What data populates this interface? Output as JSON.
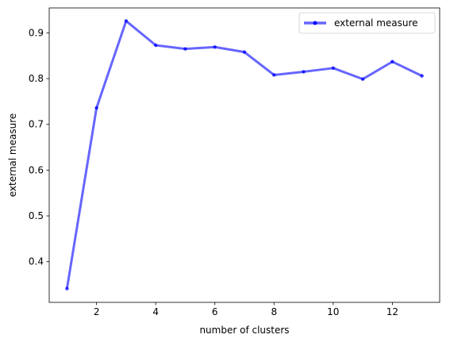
{
  "chart_data": {
    "type": "line",
    "title": "",
    "xlabel": "number of clusters",
    "ylabel": "external measure",
    "x_ticks": [
      "2",
      "4",
      "6",
      "8",
      "10",
      "12"
    ],
    "y_ticks": [
      "0.4",
      "0.5",
      "0.6",
      "0.7",
      "0.8",
      "0.9"
    ],
    "xlim": [
      0.4,
      13.6
    ],
    "ylim": [
      0.311,
      0.9545
    ],
    "grid": false,
    "legend": "top-right",
    "series": [
      {
        "name": "external measure",
        "color": "#0000ff",
        "marker": "circle",
        "x": [
          1,
          2,
          3,
          4,
          5,
          6,
          7,
          8,
          9,
          10,
          11,
          12,
          13
        ],
        "y": [
          0.341,
          0.736,
          0.926,
          0.873,
          0.865,
          0.869,
          0.858,
          0.808,
          0.815,
          0.823,
          0.799,
          0.837,
          0.806
        ]
      }
    ]
  }
}
